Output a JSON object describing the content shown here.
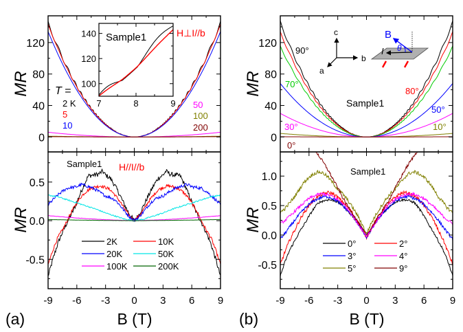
{
  "chart_data": [
    {
      "id": "a-top",
      "type": "line",
      "panel": "(a)",
      "ylabel": "MR",
      "xlim": [
        -9,
        9
      ],
      "ylim": [
        -19,
        154
      ],
      "yticks": [
        0,
        40,
        80,
        120
      ],
      "ytick_labels": [
        "0",
        "40",
        "80",
        "120"
      ],
      "xticks": [
        -9,
        -6,
        -3,
        0,
        3,
        6,
        9
      ],
      "annotations": [
        {
          "text": "T =",
          "color": "#000000",
          "italic_T": true
        },
        {
          "text": "2 K",
          "color": "#000000"
        },
        {
          "text": "5",
          "color": "#ff0000"
        },
        {
          "text": "10",
          "color": "#0000ff"
        },
        {
          "text": "50",
          "color": "#ff00ff"
        },
        {
          "text": "100",
          "color": "#808000"
        },
        {
          "text": "200",
          "color": "#800000"
        },
        {
          "text": "H⊥I//b",
          "color": "#ff0000"
        }
      ],
      "series": [
        {
          "name": "2 K",
          "color": "#000000",
          "shape": "parabola",
          "value_at_9T": 145,
          "oscillation": 2.5
        },
        {
          "name": "5 K",
          "color": "#ff0000",
          "shape": "parabola",
          "value_at_9T": 143,
          "oscillation": 0.6
        },
        {
          "name": "10 K",
          "color": "#0000ff",
          "shape": "parabola",
          "value_at_9T": 134,
          "oscillation": 0
        },
        {
          "name": "50 K",
          "color": "#ff00ff",
          "shape": "parabola",
          "value_at_9T": 6,
          "oscillation": 0
        },
        {
          "name": "100 K",
          "color": "#808000",
          "shape": "parabola",
          "value_at_9T": 1,
          "oscillation": 0
        },
        {
          "name": "200 K",
          "color": "#800000",
          "shape": "parabola",
          "value_at_9T": 0.4,
          "oscillation": 0
        }
      ],
      "inset": {
        "title": "Sample1",
        "xlim": [
          7,
          9
        ],
        "ylim": [
          90,
          148
        ],
        "xticks": [
          7,
          8,
          9
        ],
        "xtick_labels": [
          "7",
          "8",
          "9"
        ],
        "yticks": [
          100,
          120,
          140
        ],
        "ytick_labels": [
          "100",
          "120",
          "140"
        ],
        "series": [
          {
            "name": "2 K",
            "color": "#000000",
            "value_at_7T": 90,
            "value_at_9T": 146,
            "oscillation": 2.5
          },
          {
            "name": "5 K",
            "color": "#ff0000",
            "value_at_7T": 90,
            "value_at_9T": 143,
            "oscillation": 0.6
          }
        ]
      }
    },
    {
      "id": "a-bottom",
      "type": "line",
      "panel": "(a)",
      "title": "Sample1",
      "subtitle": "H//I//b",
      "xlabel": "B (T)",
      "ylabel": "MR",
      "xlim": [
        -9,
        9
      ],
      "ylim": [
        -0.88,
        0.89
      ],
      "yticks": [
        -0.5,
        0.0,
        0.5
      ],
      "ytick_labels": [
        "-0.5",
        "0.0",
        "0.5"
      ],
      "xticks": [
        -9,
        -6,
        -3,
        0,
        3,
        6,
        9
      ],
      "xtick_labels": [
        "-9",
        "-6",
        "-3",
        "0",
        "3",
        "6",
        "9"
      ],
      "legend_position": "lower-center",
      "series": [
        {
          "name": "2K",
          "color": "#000000",
          "x": [
            0,
            0.5,
            1,
            1.5,
            2,
            2.5,
            3,
            3.3,
            3.8,
            4.3,
            4.8,
            5.3,
            5.8,
            6.3,
            6.8,
            7.0,
            7.5,
            8,
            8.5,
            9
          ],
          "y": [
            0,
            0.08,
            0.2,
            0.33,
            0.45,
            0.55,
            0.59,
            0.64,
            0.6,
            0.59,
            0.58,
            0.45,
            0.3,
            0.15,
            0.03,
            -0.02,
            -0.15,
            -0.3,
            -0.5,
            -0.72
          ],
          "noise": 0.03
        },
        {
          "name": "10K",
          "color": "#ff0000",
          "x": [
            0,
            0.5,
            1,
            1.5,
            2,
            2.5,
            3,
            3.5,
            4,
            4.5,
            5,
            5.5,
            6,
            6.5,
            7,
            7.5,
            8,
            8.5,
            9
          ],
          "y": [
            0,
            0.06,
            0.15,
            0.25,
            0.33,
            0.4,
            0.43,
            0.45,
            0.44,
            0.42,
            0.38,
            0.32,
            0.23,
            0.13,
            0.0,
            -0.12,
            -0.22,
            -0.38,
            -0.57
          ],
          "noise": 0.02
        },
        {
          "name": "20K",
          "color": "#0000ff",
          "x": [
            0,
            0.5,
            1,
            1.5,
            2,
            2.5,
            3,
            3.5,
            4,
            4.5,
            5,
            5.5,
            6,
            6.5,
            7,
            7.5,
            8,
            8.5,
            9
          ],
          "y": [
            0,
            0.05,
            0.12,
            0.2,
            0.27,
            0.3,
            0.32,
            0.36,
            0.4,
            0.43,
            0.45,
            0.47,
            0.44,
            0.43,
            0.42,
            0.38,
            0.33,
            0.27,
            0.2
          ],
          "noise": 0.02
        },
        {
          "name": "50K",
          "color": "#00e5e5",
          "x": [
            0,
            1,
            2,
            3,
            4,
            5,
            6,
            7,
            8,
            9
          ],
          "y": [
            0,
            0.02,
            0.06,
            0.1,
            0.15,
            0.19,
            0.23,
            0.27,
            0.31,
            0.33
          ],
          "noise": 0.008
        },
        {
          "name": "100K",
          "color": "#ff00ff",
          "x": [
            0,
            3,
            6,
            9
          ],
          "y": [
            0,
            0.012,
            0.035,
            0.065
          ],
          "noise": 0.002
        },
        {
          "name": "200K",
          "color": "#006400",
          "x": [
            0,
            3,
            6,
            9
          ],
          "y": [
            0,
            0.003,
            0.008,
            0.015
          ],
          "noise": 0.001
        }
      ]
    },
    {
      "id": "b-top",
      "type": "line",
      "panel": "(b)",
      "title": "Sample1",
      "ylabel": "MR",
      "xlim": [
        -9,
        9
      ],
      "ylim": [
        -19,
        154
      ],
      "yticks": [
        0,
        40,
        80,
        120
      ],
      "ytick_labels": [
        "0",
        "40",
        "80",
        "120"
      ],
      "xticks": [
        -9,
        -6,
        -3,
        0,
        3,
        6,
        9
      ],
      "annotations": [
        {
          "text": "90°",
          "color": "#000000"
        },
        {
          "text": "80°",
          "color": "#ff0000"
        },
        {
          "text": "70°",
          "color": "#00cc00"
        },
        {
          "text": "50°",
          "color": "#0000ff"
        },
        {
          "text": "30°",
          "color": "#ff00ff"
        },
        {
          "text": "10°",
          "color": "#808000"
        },
        {
          "text": "0°",
          "color": "#800000"
        }
      ],
      "series": [
        {
          "name": "90°",
          "color": "#000000",
          "shape": "parabola",
          "value_at_9T": 146,
          "oscillation": 2.0
        },
        {
          "name": "80°",
          "color": "#ff0000",
          "shape": "parabola",
          "value_at_9T": 133,
          "oscillation": 1.2
        },
        {
          "name": "70°",
          "color": "#00cc00",
          "shape": "parabola",
          "value_at_9T": 115,
          "oscillation": 1.0
        },
        {
          "name": "50°",
          "color": "#0000ff",
          "shape": "parabola",
          "value_at_9T": 68,
          "oscillation": 0
        },
        {
          "name": "30°",
          "color": "#ff00ff",
          "shape": "parabola",
          "value_at_9T": 30,
          "oscillation": 0
        },
        {
          "name": "10°",
          "color": "#808000",
          "shape": "parabola",
          "value_at_9T": 4.5,
          "oscillation": 0
        },
        {
          "name": "0°",
          "color": "#800000",
          "shape": "parabola",
          "value_at_9T": 0.3,
          "oscillation": 0
        }
      ],
      "schematic": {
        "axis_labels": [
          "c",
          "b",
          "a"
        ],
        "field_label": "B",
        "current_label": "I",
        "angle_label": "θ"
      }
    },
    {
      "id": "b-bottom",
      "type": "line",
      "panel": "(b)",
      "title": "Sample1",
      "xlabel": "B (T)",
      "ylabel": "MR",
      "xlim": [
        -9,
        9
      ],
      "ylim": [
        -0.91,
        1.41
      ],
      "yticks": [
        -0.5,
        0.0,
        0.5,
        1.0
      ],
      "ytick_labels": [
        "-0.5",
        "0.0",
        "0.5",
        "1.0"
      ],
      "xticks": [
        -9,
        -6,
        -3,
        0,
        3,
        6,
        9
      ],
      "xtick_labels": [
        "-9",
        "-6",
        "-3",
        "0",
        "3",
        "6",
        "9"
      ],
      "legend_position": "lower-center",
      "series": [
        {
          "name": "0°",
          "color": "#000000",
          "x": [
            0,
            0.5,
            1,
            1.5,
            2,
            2.5,
            3,
            3.5,
            4,
            4.5,
            5,
            5.5,
            6,
            6.5,
            7,
            7.5,
            8,
            8.5,
            9
          ],
          "y": [
            -0.05,
            0.1,
            0.22,
            0.33,
            0.42,
            0.5,
            0.56,
            0.59,
            0.6,
            0.58,
            0.55,
            0.45,
            0.32,
            0.18,
            0.05,
            -0.1,
            -0.25,
            -0.45,
            -0.7
          ],
          "noise": 0.02
        },
        {
          "name": "2°",
          "color": "#ff0000",
          "x": [
            0,
            0.5,
            1,
            1.5,
            2,
            2.5,
            3,
            3.5,
            4,
            4.5,
            5,
            5.5,
            6,
            6.5,
            7,
            7.5,
            8,
            8.5,
            9
          ],
          "y": [
            -0.04,
            0.12,
            0.25,
            0.38,
            0.48,
            0.56,
            0.64,
            0.7,
            0.72,
            0.7,
            0.66,
            0.6,
            0.5,
            0.38,
            0.25,
            0.08,
            -0.08,
            -0.28,
            -0.5
          ],
          "noise": 0.03
        },
        {
          "name": "3°",
          "color": "#0000ff",
          "x": [
            0,
            0.5,
            1,
            1.5,
            2,
            2.5,
            3,
            3.5,
            4,
            4.5,
            5,
            5.5,
            6,
            6.5,
            7,
            7.5,
            8,
            8.5,
            9
          ],
          "y": [
            -0.04,
            0.1,
            0.22,
            0.33,
            0.42,
            0.5,
            0.57,
            0.62,
            0.65,
            0.65,
            0.62,
            0.58,
            0.52,
            0.44,
            0.35,
            0.25,
            0.14,
            0.03,
            -0.07
          ],
          "noise": 0.025
        },
        {
          "name": "4°",
          "color": "#ff00ff",
          "x": [
            0,
            0.5,
            1,
            1.5,
            2,
            2.5,
            3,
            3.5,
            4,
            4.5,
            5,
            5.5,
            6,
            6.5,
            7,
            7.5,
            8,
            8.5,
            9
          ],
          "y": [
            -0.03,
            0.1,
            0.22,
            0.34,
            0.45,
            0.54,
            0.6,
            0.65,
            0.68,
            0.7,
            0.69,
            0.66,
            0.62,
            0.55,
            0.48,
            0.4,
            0.32,
            0.25,
            0.19
          ],
          "noise": 0.025
        },
        {
          "name": "5°",
          "color": "#808000",
          "x": [
            0,
            0.5,
            1,
            1.5,
            2,
            2.5,
            3,
            3.5,
            4,
            4.5,
            5,
            5.5,
            6,
            6.5,
            7,
            7.5,
            8,
            8.5,
            9
          ],
          "y": [
            0.02,
            0.2,
            0.35,
            0.48,
            0.6,
            0.7,
            0.78,
            0.88,
            0.98,
            1.05,
            1.07,
            1.04,
            0.98,
            0.9,
            0.78,
            0.65,
            0.55,
            0.45,
            0.38
          ],
          "noise": 0.03
        },
        {
          "name": "9°",
          "color": "#800000",
          "x": [
            0,
            0.5,
            1,
            1.5,
            2,
            2.5,
            3,
            3.5,
            4,
            4.5,
            5,
            5.5,
            6
          ],
          "y": [
            0.0,
            0.12,
            0.25,
            0.38,
            0.5,
            0.64,
            0.8,
            0.95,
            1.1,
            1.23,
            1.35,
            1.48,
            1.6
          ],
          "noise": 0.025
        }
      ]
    }
  ],
  "panel_labels": {
    "a": "(a)",
    "b": "(b)"
  },
  "ylabel_text": "MR",
  "xlabel_text": "B (T)"
}
